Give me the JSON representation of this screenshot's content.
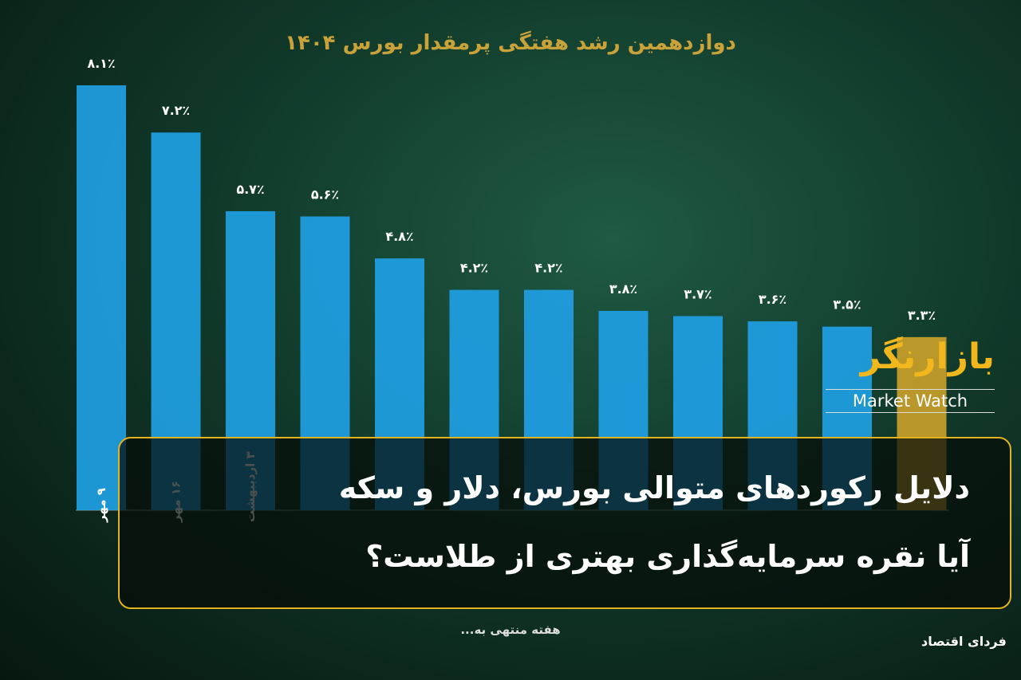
{
  "chart_data": {
    "type": "bar",
    "title": "دوازدهمین رشد هفتگی پرمقدار بورس ۱۴۰۴",
    "x_label": "هفته منتهی به...",
    "categories": [
      "۹ مهر",
      "۱۶ مهر",
      "۳ اردیبهشت",
      null,
      null,
      null,
      null,
      null,
      null,
      null,
      null,
      null
    ],
    "values": [
      8.1,
      7.2,
      5.7,
      5.6,
      4.8,
      4.2,
      4.2,
      3.8,
      3.7,
      3.6,
      3.5,
      3.3
    ],
    "value_labels": [
      "۸.۱٪",
      "۷.۲٪",
      "۵.۷٪",
      "۵.۶٪",
      "۴.۸٪",
      "۴.۲٪",
      "۴.۲٪",
      "۳.۸٪",
      "۳.۷٪",
      "۳.۶٪",
      "۳.۵٪",
      "۳.۳٪"
    ],
    "colors": [
      "#1f9fe4",
      "#1f9fe4",
      "#1f9fe4",
      "#1f9fe4",
      "#1f9fe4",
      "#1f9fe4",
      "#1f9fe4",
      "#1f9fe4",
      "#1f9fe4",
      "#1f9fe4",
      "#1f9fe4",
      "#c9a02a"
    ]
  },
  "headline": {
    "line1": "دلایل رکوردهای متوالی بورس، دلار و سکه",
    "line2": "آیا نقره سرمایه‌گذاری بهتری از طلاست؟"
  },
  "logo": {
    "name": "بازارنگر",
    "english": "Market Watch"
  },
  "source": "فردای اقتصاد"
}
